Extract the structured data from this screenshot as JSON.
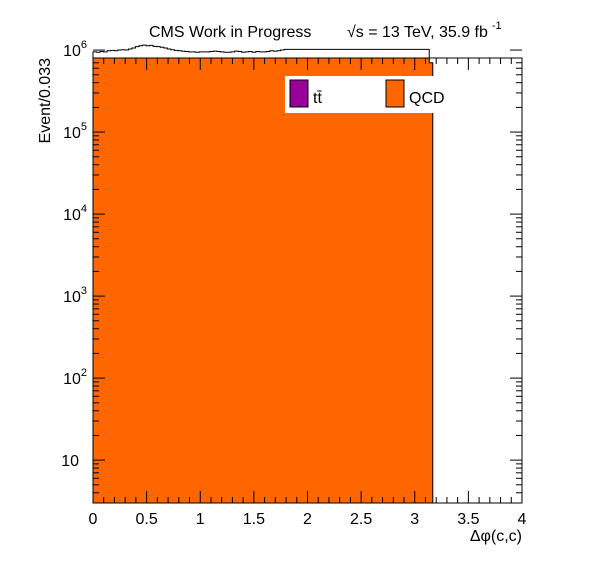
{
  "header": {
    "title_left": "CMS Work in Progress",
    "title_right_sqrt": "√s",
    "title_right_rest": " = 13 TeV, 35.9 fb",
    "title_right_sup": "-1"
  },
  "chart_data": {
    "type": "area",
    "title": "CMS Work in Progress    √s = 13 TeV, 35.9 fb -1",
    "xlabel": "Δφ(c,c)",
    "ylabel": "Event/0.033",
    "xlim": [
      0,
      4
    ],
    "ylim": [
      3,
      800000
    ],
    "log_y": true,
    "bin_width": 0.033,
    "grid": false,
    "legend_position": "top",
    "x_ticks": [
      0,
      0.5,
      1,
      1.5,
      2,
      2.5,
      3,
      3.5,
      4
    ],
    "x_tick_labels": [
      "0",
      "0.5",
      "1",
      "1.5",
      "2",
      "2.5",
      "3",
      "3.5",
      "4"
    ],
    "y_ticks": [
      10,
      100,
      1000,
      10000,
      100000,
      1000000
    ],
    "y_tick_labels": [
      {
        "base": "10",
        "exp": ""
      },
      {
        "base": "10",
        "exp": "2"
      },
      {
        "base": "10",
        "exp": "3"
      },
      {
        "base": "10",
        "exp": "4"
      },
      {
        "base": "10",
        "exp": "5"
      },
      {
        "base": "10",
        "exp": "6"
      }
    ],
    "series": [
      {
        "name": "tt̄",
        "color": "#990099",
        "x": [],
        "values": []
      },
      {
        "name": "QCD",
        "color": "#ff6600",
        "x": [
          0.0165,
          0.0495,
          0.0825,
          0.1155,
          0.1485,
          0.1815,
          0.2145,
          0.2475,
          0.2805,
          0.3135,
          0.3465,
          0.3795,
          0.4125,
          0.4455,
          0.4785,
          0.5115,
          0.5445,
          0.5775,
          0.6105,
          0.6435,
          0.6765,
          0.7095,
          0.7425,
          0.7755,
          0.8085,
          0.8415,
          0.8745,
          0.9075,
          0.9405,
          0.9735,
          1.0065,
          1.0395,
          1.0725,
          1.1055,
          1.1385,
          1.1715,
          1.2045,
          1.2375,
          1.2705,
          1.3035,
          1.3365,
          1.3695,
          1.4025,
          1.4355,
          1.4685,
          1.5015,
          1.5345,
          1.5675,
          1.6005,
          1.6335,
          1.6665,
          1.6995,
          1.7325,
          1.7655,
          1.7985,
          1.8315,
          1.8645,
          1.8975,
          1.9305,
          1.9635,
          1.9965,
          2.0295,
          2.0625,
          2.0955,
          2.1285,
          2.1615,
          2.1945,
          2.2275,
          2.2605,
          2.2935,
          2.3265,
          2.3595,
          2.3925,
          2.4255,
          2.4585,
          2.4915,
          2.5245,
          2.5575,
          2.5905,
          2.6235,
          2.6565,
          2.6895,
          2.7225,
          2.7555,
          2.7885,
          2.8215,
          2.8545,
          2.8875,
          2.9205,
          2.9535,
          2.9865,
          3.0195,
          3.0525,
          3.0855,
          3.1185,
          3.1515
        ],
        "values": [
          950000,
          940000,
          960000,
          950000,
          980000,
          990000,
          980000,
          1000000,
          1010000,
          1000000,
          1030000,
          1060000,
          1100000,
          1130000,
          1150000,
          1130000,
          1140000,
          1110000,
          1100000,
          1080000,
          1060000,
          1030000,
          1010000,
          990000,
          980000,
          970000,
          960000,
          950000,
          950000,
          940000,
          950000,
          950000,
          950000,
          960000,
          970000,
          960000,
          950000,
          940000,
          940000,
          950000,
          970000,
          960000,
          940000,
          950000,
          960000,
          940000,
          960000,
          950000,
          950000,
          960000,
          980000,
          970000,
          980000,
          1000000,
          1020000,
          1020000,
          1020000,
          1020000,
          1020000,
          1020000,
          1020000,
          1020000,
          1020000,
          1020000,
          1020000,
          1020000,
          1020000,
          1020000,
          1020000,
          1020000,
          1020000,
          1020000,
          1020000,
          1020000,
          1020000,
          1020000,
          1020000,
          1020000,
          1020000,
          1020000,
          1020000,
          1020000,
          1020000,
          1020000,
          1020000,
          1020000,
          1020000,
          1020000,
          1020000,
          1020000,
          1020000,
          1020000,
          1020000,
          1020000,
          1020000,
          700000
        ]
      }
    ]
  }
}
